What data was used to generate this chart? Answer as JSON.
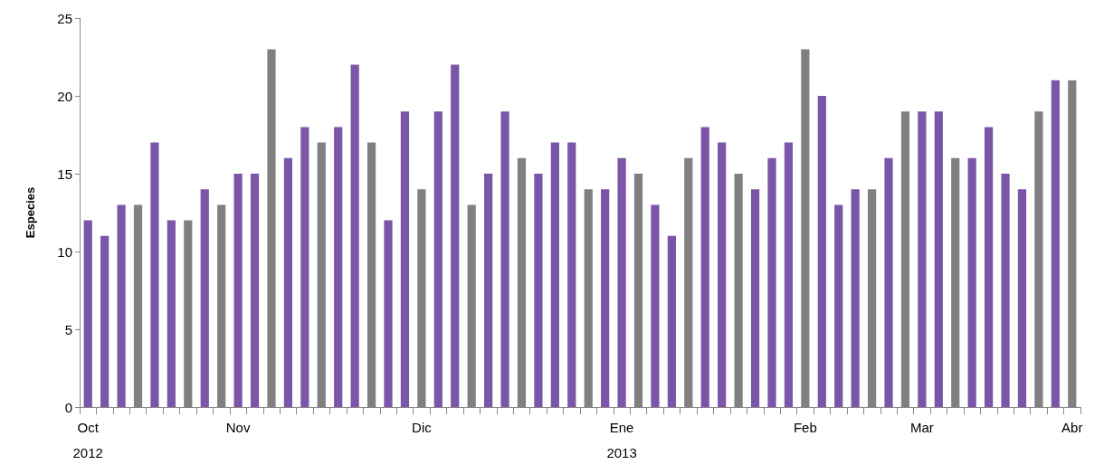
{
  "chart_data": {
    "type": "bar",
    "ylabel": "Especies",
    "categories": [
      "Oct\n2012",
      null,
      null,
      null,
      null,
      null,
      null,
      null,
      null,
      "Nov",
      null,
      null,
      null,
      null,
      null,
      null,
      null,
      null,
      null,
      null,
      "Dic",
      null,
      null,
      null,
      null,
      null,
      null,
      null,
      null,
      null,
      null,
      null,
      "Ene\n2013",
      null,
      null,
      null,
      null,
      null,
      null,
      null,
      null,
      null,
      null,
      "Feb",
      null,
      null,
      null,
      null,
      null,
      null,
      "Mar",
      null,
      null,
      null,
      null,
      null,
      null,
      null,
      null,
      "Abr"
    ],
    "values": [
      12,
      11,
      13,
      13,
      17,
      12,
      12,
      14,
      13,
      15,
      15,
      23,
      16,
      18,
      17,
      18,
      22,
      17,
      12,
      19,
      14,
      19,
      22,
      13,
      15,
      19,
      16,
      15,
      17,
      17,
      14,
      14,
      16,
      15,
      13,
      11,
      16,
      18,
      17,
      15,
      14,
      16,
      17,
      23,
      20,
      13,
      14,
      14,
      16,
      19,
      19,
      19,
      16,
      16,
      18,
      15,
      14,
      19,
      21,
      21
    ],
    "colors": [
      "#7b55a8",
      "#7b55a8",
      "#7b55a8",
      "#808080",
      "#7b55a8",
      "#7b55a8",
      "#808080",
      "#7b55a8",
      "#808080",
      "#7b55a8",
      "#7b55a8",
      "#808080",
      "#7b55a8",
      "#7b55a8",
      "#808080",
      "#7b55a8",
      "#7b55a8",
      "#808080",
      "#7b55a8",
      "#7b55a8",
      "#808080",
      "#7b55a8",
      "#7b55a8",
      "#808080",
      "#7b55a8",
      "#7b55a8",
      "#808080",
      "#7b55a8",
      "#7b55a8",
      "#7b55a8",
      "#808080",
      "#7b55a8",
      "#7b55a8",
      "#808080",
      "#7b55a8",
      "#7b55a8",
      "#808080",
      "#7b55a8",
      "#7b55a8",
      "#808080",
      "#7b55a8",
      "#7b55a8",
      "#7b55a8",
      "#808080",
      "#7b55a8",
      "#7b55a8",
      "#7b55a8",
      "#808080",
      "#7b55a8",
      "#808080",
      "#7b55a8",
      "#7b55a8",
      "#808080",
      "#7b55a8",
      "#7b55a8",
      "#7b55a8",
      "#7b55a8",
      "#808080",
      "#7b55a8",
      "#808080"
    ],
    "ylim": [
      0,
      25
    ],
    "yticks": [
      0,
      5,
      10,
      15,
      20,
      25
    ],
    "grid": false
  }
}
